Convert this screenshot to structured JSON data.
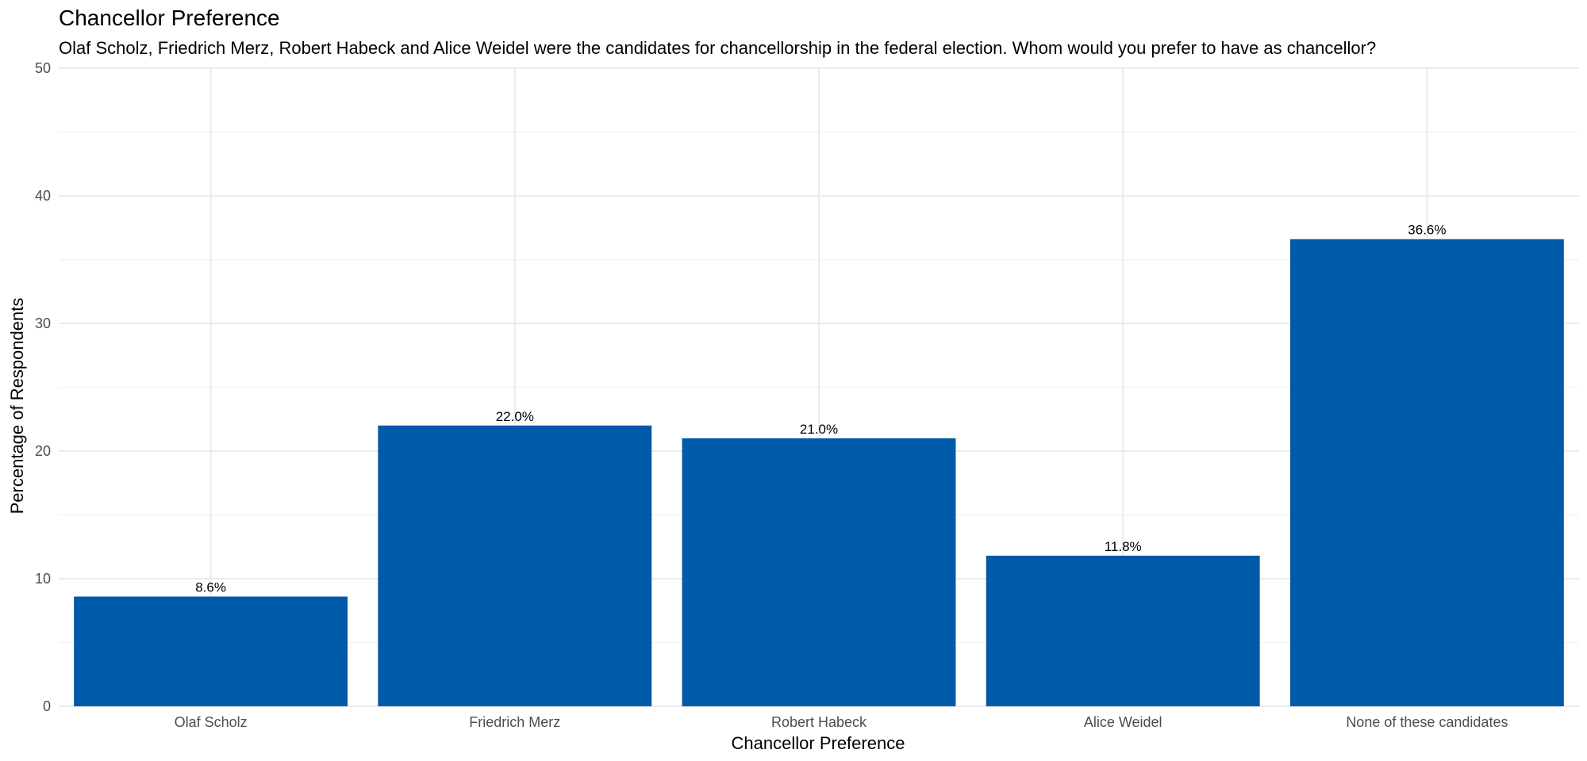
{
  "chart_data": {
    "type": "bar",
    "title": "Chancellor Preference",
    "subtitle": "Olaf Scholz, Friedrich Merz, Robert Habeck and Alice Weidel were the candidates for chancellorship in the federal election. Whom would you prefer to have as chancellor?",
    "xlabel": "Chancellor Preference",
    "ylabel": "Percentage of Respondents",
    "categories": [
      "Olaf Scholz",
      "Friedrich Merz",
      "Robert Habeck",
      "Alice Weidel",
      "None of these candidates"
    ],
    "values": [
      8.6,
      22.0,
      21.0,
      11.8,
      36.6
    ],
    "data_labels": [
      "8.6%",
      "22.0%",
      "21.0%",
      "11.8%",
      "36.6%"
    ],
    "ylim": [
      0,
      50
    ],
    "yticks": [
      0,
      10,
      20,
      30,
      40,
      50
    ],
    "grid": true,
    "legend": "none",
    "bar_color": "#005aa9"
  }
}
